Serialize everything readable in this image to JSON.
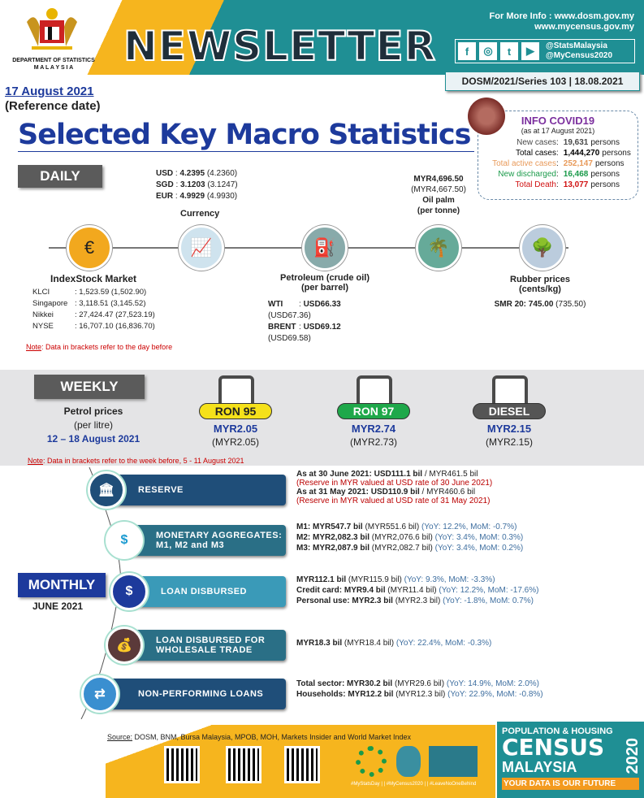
{
  "header": {
    "dept": "DEPARTMENT OF STATISTICS",
    "country": "M A L A Y S I A",
    "title": "NEWSLETTER",
    "info_line1": "For More Info : www.dosm.gov.my",
    "info_line2": "www.mycensus.gov.my",
    "social": [
      "f",
      "◎",
      "t",
      "▶"
    ],
    "handle1": "@StatsMalaysia",
    "handle2": "@MyCensus2020",
    "series": "DOSM/2021/Series 103  | 18.08.2021",
    "ref_date": "17 August 2021",
    "ref_label": "(Reference date)",
    "page_title": "Selected Key Macro Statistics"
  },
  "covid": {
    "title": "INFO COVID19",
    "as_at": "(as at 17 August 2021)",
    "unit": "persons",
    "rows": [
      {
        "label": "New cases",
        "value": "19,631",
        "color": "#4a4a4a"
      },
      {
        "label": "Total cases",
        "value": "1,444,270",
        "color": "#000000"
      },
      {
        "label": "Total active cases",
        "value": "252,147",
        "color": "#e89a5a"
      },
      {
        "label": "New discharged",
        "value": "16,468",
        "color": "#1a9a4a"
      },
      {
        "label": "Total Death",
        "value": "13,077",
        "color": "#d01010"
      }
    ]
  },
  "daily": {
    "label": "DAILY",
    "currency": {
      "title": "Currency",
      "rows": [
        {
          "k": "USD",
          "v": "4.2395",
          "p": "(4.2360)"
        },
        {
          "k": "SGD",
          "v": "3.1203",
          "p": "(3.1247)"
        },
        {
          "k": "EUR",
          "v": "4.9929",
          "p": "(4.9930)"
        }
      ]
    },
    "oilpalm": {
      "value": "MYR4,696.50",
      "prev": "(MYR4,667.50)",
      "title": "Oil palm",
      "unit": "(per tonne)"
    },
    "stock": {
      "title": "IndexStock Market",
      "rows": [
        {
          "k": "KLCI",
          "v": ": 1,523.59 (1,502.90)"
        },
        {
          "k": "Singapore",
          "v": ": 3,118.51 (3,145.52)"
        },
        {
          "k": "Nikkei",
          "v": ": 27,424.47 (27,523.19)"
        },
        {
          "k": "NYSE",
          "v": ": 16,707.10 (16,836.70)"
        }
      ]
    },
    "petroleum": {
      "title": "Petroleum (crude oil)",
      "unit": "(per barrel)",
      "rows": [
        {
          "k": "WTI",
          "v": "USD66.33",
          "p": "(USD67.36)"
        },
        {
          "k": "BRENT",
          "v": "USD69.12",
          "p": "(USD69.58)"
        }
      ]
    },
    "rubber": {
      "title": "Rubber prices",
      "unit": "(cents/kg)",
      "label": "SMR 20:",
      "v": "745.00",
      "p": "(735.50)"
    },
    "note_label": "Note",
    "note": ": Data in brackets refer to the day before"
  },
  "weekly": {
    "label": "WEEKLY",
    "title": "Petrol prices",
    "unit": "(per litre)",
    "period": "12 – 18 August 2021",
    "fuels": [
      {
        "name": "RON 95",
        "price": "MYR2.05",
        "prev": "(MYR2.05)",
        "color": "#f5e11a"
      },
      {
        "name": "RON 97",
        "price": "MYR2.74",
        "prev": "(MYR2.73)",
        "color": "#1ea84a"
      },
      {
        "name": "DIESEL",
        "price": "MYR2.15",
        "prev": "(MYR2.15)",
        "color": "#555555"
      }
    ],
    "note_label": "Note",
    "note": ": Data in brackets refer to the week before, 5 - 11 August 2021"
  },
  "monthly": {
    "label": "MONTHLY",
    "period": "JUNE 2021",
    "items": [
      {
        "label": "RESERVE",
        "icon": "bank-icon",
        "lines": [
          {
            "b": "As at 30 June 2021: USD111.1 bil",
            "n": " / MYR461.5 bil",
            "c": ""
          },
          {
            "b": "",
            "n": "",
            "c": "(Reserve in MYR valued at USD rate of 30 June 2021)"
          },
          {
            "b": "As at 31 May 2021: USD110.9 bil",
            "n": " / MYR460.6 bil",
            "c": ""
          },
          {
            "b": "",
            "n": "",
            "c": "(Reserve in MYR valued at USD rate of 31 May 2021)"
          }
        ]
      },
      {
        "label": "MONETARY AGGREGATES: M1, M2 and M3",
        "icon": "money-arrows-icon",
        "lines": [
          {
            "b": "M1: MYR547.7 bil",
            "n": " (MYR551.6 bil) ",
            "c": "(YoY: 12.2%, MoM: -0.7%)"
          },
          {
            "b": "M2: MYR2,082.3 bil",
            "n": " (MYR2,076.6 bil) ",
            "c": "(YoY: 3.4%, MoM: 0.3%)"
          },
          {
            "b": "M3: MYR2,087.9 bil",
            "n": " (MYR2,082.7 bil) ",
            "c": "(YoY: 3.4%, MoM: 0.2%)"
          }
        ]
      },
      {
        "label": "LOAN DISBURSED",
        "icon": "loan-icon",
        "lines": [
          {
            "b": "MYR112.1 bil",
            "n": " (MYR115.9 bil) ",
            "c": "(YoY: 9.3%, MoM: -3.3%)"
          },
          {
            "b": "Credit card: MYR9.4 bil",
            "n": " (MYR11.4 bil) ",
            "c": "(YoY: 12.2%, MoM: -17.6%)"
          },
          {
            "b": "Personal use: MYR2.3 bil",
            "n": " (MYR2.3 bil) ",
            "c": "(YoY: -1.8%, MoM: 0.7%)"
          }
        ]
      },
      {
        "label": "LOAN DISBURSED FOR WHOLESALE TRADE",
        "icon": "money-bag-hand-icon",
        "lines": [
          {
            "b": "MYR18.3 bil",
            "n": " (MYR18.4 bil) ",
            "c": "(YoY: 22.4%, MoM: -0.3%)"
          }
        ]
      },
      {
        "label": "NON-PERFORMING LOANS",
        "icon": "exchange-icon",
        "lines": [
          {
            "b": "Total sector: MYR30.2 bil",
            "n": " (MYR29.6 bil) ",
            "c": "(YoY: 14.9%, MoM: 2.0%)"
          },
          {
            "b": "Households: MYR12.2 bil",
            "n": " (MYR12.3 bil) ",
            "c": "(YoY: 22.9%, MoM: -0.8%)"
          }
        ]
      }
    ]
  },
  "footer": {
    "source_label": "Source:",
    "source": " DOSM, BNM, Bursa Malaysia, MPOB, MOH, Markets Insider and World Market Index",
    "hashtags": "#MyStatsDay | | #MyCensus2020 | | #LeaveNoOneBehind",
    "census1": "POPULATION & HOUSING",
    "census2": "CENSUS",
    "census3": "MALAYSIA",
    "census_year": "2020",
    "census_tag": "YOUR DATA IS OUR FUTURE"
  }
}
